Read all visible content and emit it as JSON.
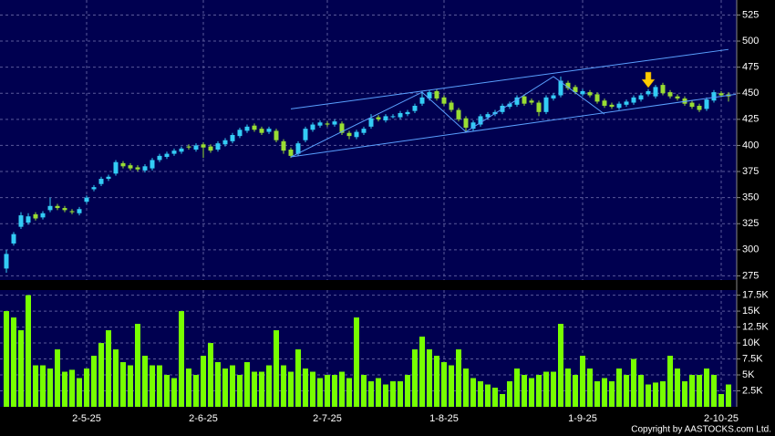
{
  "chart_data": [
    {
      "type": "candlestick",
      "up_color": "#33ccf5",
      "down_color": "#99dd33",
      "open": [
        282,
        306,
        322,
        326,
        334,
        331,
        338,
        342,
        340,
        337,
        335,
        346,
        358,
        363,
        368,
        373,
        383,
        381,
        379,
        376,
        378,
        386,
        389,
        392,
        394,
        399,
        396,
        401,
        399,
        396,
        401,
        404,
        409,
        414,
        419,
        416,
        413,
        414,
        404,
        396,
        392,
        405,
        415,
        419,
        421,
        420,
        421,
        412,
        408,
        412,
        418,
        427,
        424,
        428,
        427,
        430,
        433,
        440,
        445,
        452,
        446,
        441,
        434,
        426,
        416,
        420,
        427,
        430,
        432,
        437,
        439,
        447,
        443,
        441,
        432,
        445,
        448,
        460,
        456,
        449,
        451,
        449,
        443,
        439,
        436,
        439,
        441,
        444,
        449,
        447,
        458,
        451,
        447,
        445,
        441,
        438,
        435,
        443,
        450,
        449
      ],
      "high": [
        300,
        317,
        336,
        335,
        336,
        337,
        350,
        344,
        342,
        339,
        341,
        352,
        362,
        370,
        372,
        386,
        385,
        383,
        381,
        382,
        388,
        392,
        394,
        397,
        399,
        401,
        402,
        403,
        401,
        404,
        407,
        412,
        417,
        420,
        421,
        418,
        418,
        416,
        406,
        398,
        404,
        418,
        422,
        424,
        423,
        425,
        423,
        414,
        415,
        418,
        430,
        429,
        430,
        430,
        433,
        434,
        440,
        452,
        453,
        454,
        448,
        443,
        436,
        428,
        424,
        430,
        432,
        434,
        440,
        442,
        448,
        449,
        445,
        443,
        448,
        450,
        466,
        462,
        458,
        454,
        453,
        451,
        445,
        441,
        442,
        444,
        448,
        450,
        454,
        458,
        460,
        453,
        449,
        447,
        443,
        440,
        446,
        453,
        452,
        451
      ],
      "low": [
        278,
        304,
        320,
        324,
        328,
        329,
        336,
        338,
        336,
        334,
        333,
        344,
        356,
        361,
        366,
        371,
        378,
        376,
        375,
        374,
        376,
        384,
        387,
        390,
        392,
        396,
        394,
        388,
        393,
        394,
        399,
        402,
        407,
        412,
        413,
        410,
        411,
        403,
        392,
        388,
        390,
        403,
        413,
        417,
        418,
        418,
        410,
        406,
        406,
        410,
        416,
        423,
        422,
        426,
        425,
        428,
        431,
        438,
        443,
        443,
        438,
        432,
        423,
        413,
        414,
        418,
        425,
        428,
        430,
        435,
        437,
        438,
        439,
        428,
        430,
        443,
        446,
        453,
        449,
        447,
        446,
        440,
        436,
        435,
        434,
        437,
        439,
        442,
        447,
        445,
        448,
        445,
        443,
        438,
        435,
        432,
        433,
        441,
        446,
        442
      ],
      "close": [
        296,
        315,
        333,
        332,
        330,
        335,
        342,
        340,
        338,
        336,
        339,
        350,
        360,
        368,
        370,
        384,
        380,
        378,
        377,
        380,
        386,
        390,
        392,
        395,
        397,
        398,
        400,
        398,
        395,
        402,
        405,
        410,
        415,
        418,
        415,
        412,
        416,
        405,
        395,
        390,
        402,
        416,
        420,
        422,
        420,
        423,
        412,
        409,
        413,
        416,
        426,
        425,
        428,
        428,
        431,
        432,
        438,
        446,
        451,
        445,
        440,
        434,
        425,
        417,
        422,
        428,
        430,
        432,
        438,
        440,
        446,
        440,
        441,
        432,
        446,
        448,
        462,
        455,
        451,
        452,
        448,
        442,
        438,
        437,
        440,
        442,
        446,
        448,
        452,
        456,
        450,
        447,
        445,
        440,
        437,
        434,
        444,
        451,
        448,
        447
      ],
      "ylim": [
        271,
        535
      ],
      "yticks": [
        275,
        300,
        325,
        350,
        375,
        400,
        425,
        450,
        475,
        500,
        525
      ],
      "grid": true,
      "lines": [
        {
          "color": "#5aa0ff",
          "x": [
            39,
            99
          ],
          "y": [
            435,
            492
          ]
        },
        {
          "color": "#5aa0ff",
          "x": [
            39,
            100
          ],
          "y": [
            389,
            449
          ]
        },
        {
          "color": "#5aa0ff",
          "x": [
            39,
            57,
            63,
            75,
            82
          ],
          "y": [
            389,
            451,
            413,
            466,
            430
          ]
        }
      ],
      "marker": {
        "color": "#ffcc00",
        "index": 88,
        "price": 458
      }
    },
    {
      "type": "bar",
      "color": "#77ff00",
      "values": [
        15000,
        14000,
        12000,
        17500,
        6500,
        6500,
        6000,
        9000,
        5500,
        5800,
        4500,
        6000,
        8000,
        10000,
        12000,
        9000,
        7000,
        6500,
        13000,
        8000,
        6500,
        6500,
        5000,
        4500,
        15000,
        6000,
        5000,
        8000,
        10000,
        7000,
        6000,
        6500,
        5000,
        7000,
        5500,
        5500,
        6500,
        12000,
        6500,
        5500,
        9000,
        6000,
        5500,
        4500,
        5000,
        5000,
        5500,
        4500,
        14000,
        5000,
        4000,
        4500,
        3500,
        4000,
        4000,
        5000,
        9000,
        11000,
        9000,
        8000,
        7000,
        6500,
        9000,
        6000,
        4500,
        4000,
        3500,
        3000,
        2000,
        4000,
        6000,
        5000,
        4500,
        5000,
        5500,
        5500,
        13000,
        6000,
        5000,
        8000,
        6000,
        4000,
        4500,
        4000,
        6000,
        5000,
        7500,
        5000,
        3500,
        3800,
        4000,
        8000,
        6000,
        4000,
        5000,
        5000,
        6000,
        5000,
        2000,
        3500
      ],
      "ylim": [
        0,
        18300
      ],
      "yticks": [
        {
          "value": 2500,
          "label": "2.5K"
        },
        {
          "value": 5000,
          "label": "5K"
        },
        {
          "value": 7500,
          "label": "7.5K"
        },
        {
          "value": 10000,
          "label": "10K"
        },
        {
          "value": 12500,
          "label": "12.5K"
        },
        {
          "value": 15000,
          "label": "15K"
        },
        {
          "value": 17500,
          "label": "17.5K"
        }
      ],
      "xticks": [
        {
          "value": 11,
          "label": "2-5-25"
        },
        {
          "value": 27,
          "label": "2-6-25"
        },
        {
          "value": 44,
          "label": "2-7-25"
        },
        {
          "value": 60,
          "label": "1-8-25"
        },
        {
          "value": 79,
          "label": "1-9-25"
        },
        {
          "value": 98,
          "label": "2-10-25"
        }
      ],
      "grid": true
    }
  ],
  "footer": {
    "copyright": "Copyright by AASTOCKS.com Ltd."
  }
}
